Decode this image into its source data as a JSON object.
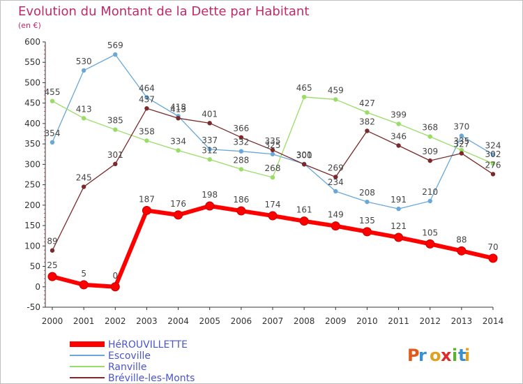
{
  "chart_data": {
    "type": "line",
    "title": "Evolution du Montant de la Dette par Habitant",
    "subtitle": "(en €)",
    "xlabel": "",
    "ylabel": "",
    "x": [
      "2000",
      "2001",
      "2002",
      "2003",
      "2004",
      "2005",
      "2006",
      "2007",
      "2008",
      "2009",
      "2010",
      "2011",
      "2012",
      "2013",
      "2014"
    ],
    "ylim": [
      -50,
      600
    ],
    "yticks": [
      -50,
      0,
      50,
      100,
      150,
      200,
      250,
      300,
      350,
      400,
      450,
      500,
      550,
      600
    ],
    "grid": false,
    "legend_position": "bottom-left",
    "series": [
      {
        "name": "HéROUVILLETTE",
        "color": "#ff0000",
        "values": [
          25,
          5,
          0,
          187,
          176,
          198,
          186,
          174,
          161,
          149,
          135,
          121,
          105,
          88,
          70
        ]
      },
      {
        "name": "Escoville",
        "color": "#6aa8d8",
        "values": [
          354,
          530,
          569,
          464,
          418,
          337,
          332,
          325,
          301,
          234,
          208,
          191,
          210,
          370,
          324
        ]
      },
      {
        "name": "Ranville",
        "color": "#99dd66",
        "values": [
          455,
          413,
          385,
          358,
          334,
          312,
          288,
          268,
          465,
          459,
          427,
          399,
          368,
          335,
          302
        ]
      },
      {
        "name": "Bréville-les-Monts",
        "color": "#7a2a2a",
        "values": [
          89,
          245,
          301,
          437,
          413,
          401,
          366,
          335,
          300,
          269,
          382,
          346,
          309,
          327,
          276
        ]
      }
    ]
  },
  "colors": {
    "title": "#c02a6a",
    "axis": "#333333",
    "label": "#444444",
    "legend_text": "#4a55cc"
  },
  "logo": {
    "text": "Proxiti"
  }
}
